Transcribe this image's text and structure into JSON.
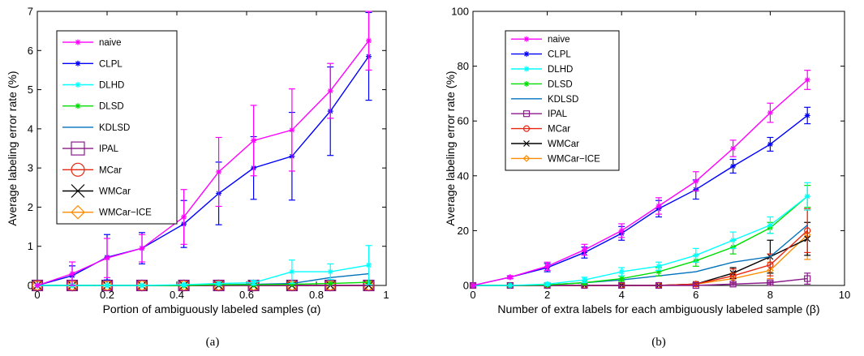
{
  "chart_data": [
    {
      "type": "line",
      "caption": "(a)",
      "xlabel": "Portion of ambiguously labeled samples (α)",
      "ylabel": "Average labeling error rate (%)",
      "xlim": [
        0,
        1
      ],
      "ylim": [
        0,
        7
      ],
      "xticks": [
        0,
        0.2,
        0.4,
        0.6,
        0.8,
        1
      ],
      "yticks": [
        0,
        1,
        2,
        3,
        4,
        5,
        6,
        7
      ],
      "xtick_labels": [
        "0",
        "0.2",
        "0.4",
        "0.6",
        "0.8",
        "1"
      ],
      "ytick_labels": [
        "0",
        "1",
        "2",
        "3",
        "4",
        "5",
        "6",
        "7"
      ],
      "grid": false,
      "legend_position": "top-left",
      "x": [
        0,
        0.1,
        0.2,
        0.3,
        0.42,
        0.52,
        0.62,
        0.73,
        0.84,
        0.95
      ],
      "series": [
        {
          "name": "naive",
          "color": "#ff00ff",
          "marker": "star",
          "values": [
            0,
            0.3,
            0.7,
            0.95,
            1.75,
            2.9,
            3.7,
            3.97,
            4.97,
            6.25
          ],
          "errors": [
            0,
            0.3,
            0.5,
            0.35,
            0.7,
            0.88,
            0.9,
            1.05,
            0.7,
            0.75
          ]
        },
        {
          "name": "CLPL",
          "color": "#0000ff",
          "marker": "star",
          "values": [
            0,
            0.25,
            0.72,
            0.95,
            1.57,
            2.35,
            3.0,
            3.3,
            4.45,
            5.85
          ],
          "errors": [
            0,
            0.25,
            0.58,
            0.4,
            0.6,
            0.8,
            0.8,
            1.12,
            1.13,
            1.12
          ]
        },
        {
          "name": "DLHD",
          "color": "#00ffff",
          "marker": "star",
          "values": [
            0,
            0,
            0,
            0,
            0.02,
            0.05,
            0.07,
            0.35,
            0.35,
            0.52
          ],
          "errors": [
            0,
            0,
            0,
            0,
            0.02,
            0.04,
            0.06,
            0.3,
            0.2,
            0.5
          ]
        },
        {
          "name": "DLSD",
          "color": "#00dd00",
          "marker": "star",
          "values": [
            0,
            0,
            0,
            0,
            0,
            0.02,
            0.02,
            0.03,
            0.05,
            0.08
          ],
          "errors": [
            0,
            0,
            0,
            0,
            0,
            0,
            0,
            0,
            0,
            0
          ]
        },
        {
          "name": "KDLSD",
          "color": "#0072bd",
          "marker": "none",
          "values": [
            0,
            0,
            0,
            0,
            0,
            0.02,
            0.03,
            0.05,
            0.2,
            0.3
          ],
          "errors": [
            0,
            0,
            0,
            0,
            0,
            0,
            0,
            0,
            0,
            0
          ]
        },
        {
          "name": "IPAL",
          "color": "#8b1a8b",
          "marker": "square",
          "values": [
            0,
            0,
            0,
            0,
            0,
            0,
            0,
            0,
            0,
            0
          ],
          "errors": [
            0,
            0,
            0,
            0,
            0,
            0,
            0,
            0,
            0,
            0
          ]
        },
        {
          "name": "MCar",
          "color": "#e8250f",
          "marker": "circle",
          "values": [
            0,
            0,
            0,
            0,
            0,
            0,
            0,
            0,
            0,
            0
          ],
          "errors": [
            0,
            0,
            0,
            0,
            0,
            0,
            0,
            0,
            0,
            0
          ]
        },
        {
          "name": "WMCar",
          "color": "#000000",
          "marker": "x",
          "values": [
            0,
            0,
            0,
            0,
            0,
            0,
            0,
            0,
            0,
            0
          ],
          "errors": [
            0,
            0,
            0,
            0,
            0,
            0,
            0,
            0,
            0,
            0
          ]
        },
        {
          "name": "WMCar−ICE",
          "color": "#ff8c00",
          "marker": "diamond",
          "values": [
            0,
            0,
            0,
            0,
            0,
            0,
            0,
            0,
            0,
            0
          ],
          "errors": [
            0,
            0,
            0,
            0,
            0,
            0,
            0,
            0,
            0,
            0
          ]
        }
      ]
    },
    {
      "type": "line",
      "caption": "(b)",
      "xlabel": "Number of extra labels for each ambiguously labeled sample (β)",
      "ylabel": "Average labeling error rate (%)",
      "xlim": [
        0,
        10
      ],
      "ylim": [
        0,
        100
      ],
      "xticks": [
        0,
        2,
        4,
        6,
        8,
        10
      ],
      "yticks": [
        0,
        20,
        40,
        60,
        80,
        100
      ],
      "xtick_labels": [
        "0",
        "2",
        "4",
        "6",
        "8",
        "10"
      ],
      "ytick_labels": [
        "0",
        "20",
        "40",
        "60",
        "80",
        "100"
      ],
      "grid": false,
      "legend_position": "top-left",
      "x": [
        0,
        1,
        2,
        3,
        4,
        5,
        6,
        7,
        8,
        9
      ],
      "series": [
        {
          "name": "naive",
          "color": "#ff00ff",
          "marker": "star",
          "values": [
            0,
            3,
            7,
            13,
            20,
            29,
            38,
            50,
            63,
            75
          ],
          "errors": [
            0,
            0.5,
            1.5,
            2,
            2.5,
            3,
            3.5,
            3,
            3.5,
            3.5
          ]
        },
        {
          "name": "CLPL",
          "color": "#0000ff",
          "marker": "star",
          "values": [
            0,
            3,
            6.5,
            12,
            19,
            28,
            35,
            43.5,
            51.5,
            62
          ],
          "errors": [
            0,
            0.5,
            1.5,
            2,
            2.5,
            3,
            3.5,
            2.5,
            2.5,
            3
          ]
        },
        {
          "name": "DLHD",
          "color": "#00ffff",
          "marker": "star",
          "values": [
            0,
            0,
            0.5,
            2,
            5,
            7,
            11,
            16.5,
            22,
            32.5
          ],
          "errors": [
            0,
            0,
            0.5,
            1,
            1.5,
            1.5,
            2.5,
            3,
            3,
            5
          ]
        },
        {
          "name": "DLSD",
          "color": "#00dd00",
          "marker": "star",
          "values": [
            0,
            0,
            0.2,
            1,
            2.5,
            5,
            9,
            14,
            21,
            32.5
          ],
          "errors": [
            0,
            0,
            0.3,
            0.8,
            1,
            1.5,
            2,
            2.5,
            2,
            4
          ]
        },
        {
          "name": "KDLSD",
          "color": "#0072bd",
          "marker": "none",
          "values": [
            0,
            0,
            0.2,
            1,
            2,
            3.5,
            5,
            8.5,
            10.5,
            22
          ],
          "errors": [
            0,
            0,
            0,
            0,
            0,
            0,
            0,
            0,
            0,
            0
          ]
        },
        {
          "name": "IPAL",
          "color": "#8b1a8b",
          "marker": "square",
          "values": [
            0,
            0,
            0,
            0,
            0,
            0,
            0,
            0.5,
            1,
            2.5
          ],
          "errors": [
            0,
            0,
            0,
            0,
            0,
            0,
            0,
            0.5,
            0.5,
            2
          ]
        },
        {
          "name": "MCar",
          "color": "#e8250f",
          "marker": "circle",
          "values": [
            0,
            0,
            0,
            0,
            0,
            0,
            0.5,
            3.5,
            7.5,
            20
          ],
          "errors": [
            0,
            0,
            0,
            0,
            0,
            0,
            0.5,
            2.5,
            4,
            8
          ]
        },
        {
          "name": "WMCar",
          "color": "#000000",
          "marker": "x",
          "values": [
            0,
            0,
            0,
            0,
            0,
            0,
            0.5,
            4.5,
            10.5,
            17
          ],
          "errors": [
            0,
            0,
            0,
            0,
            0,
            0,
            0.5,
            2,
            6,
            6
          ]
        },
        {
          "name": "WMCar−ICE",
          "color": "#ff8c00",
          "marker": "diamond",
          "values": [
            0,
            0,
            0,
            0,
            0,
            0,
            0.5,
            2.5,
            5.5,
            18.5
          ],
          "errors": [
            0,
            0,
            0,
            0,
            0,
            0,
            0.5,
            2,
            3,
            9
          ]
        }
      ]
    }
  ]
}
